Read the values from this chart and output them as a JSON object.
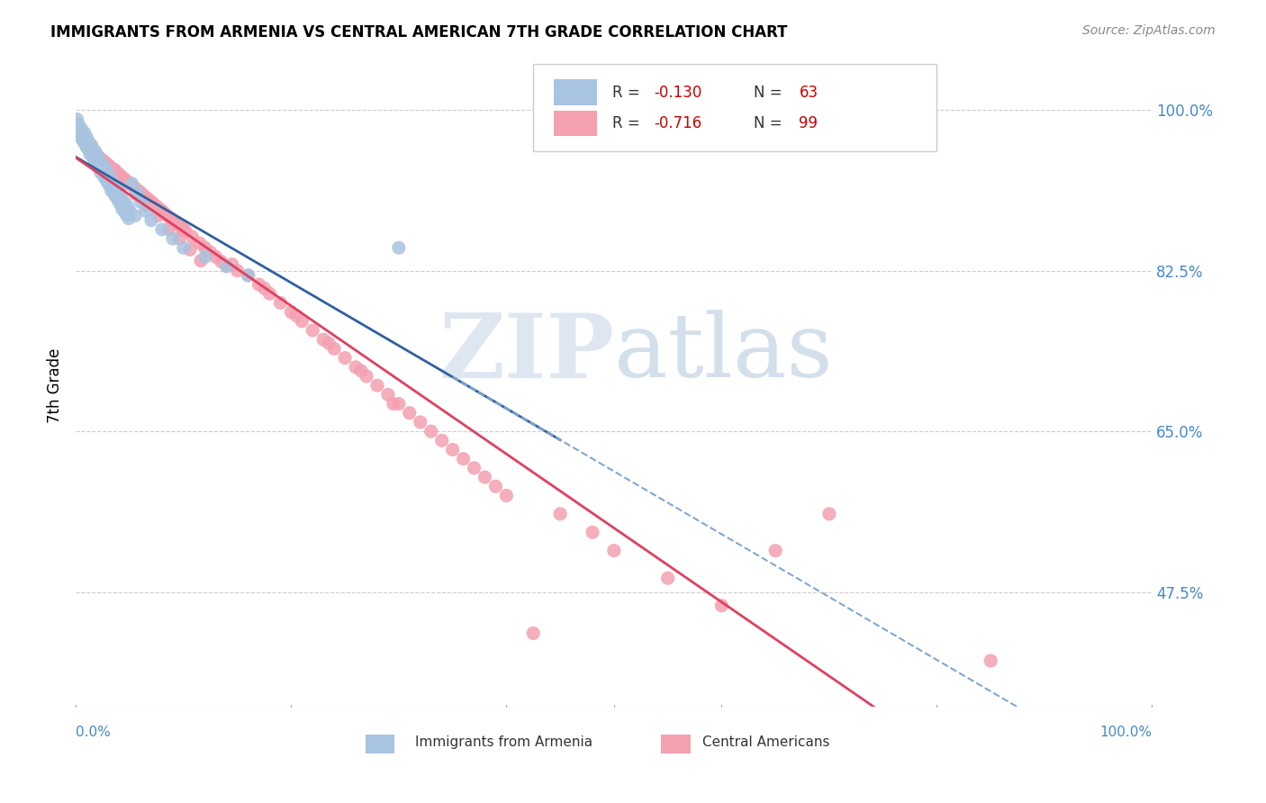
{
  "title": "IMMIGRANTS FROM ARMENIA VS CENTRAL AMERICAN 7TH GRADE CORRELATION CHART",
  "source": "Source: ZipAtlas.com",
  "ylabel": "7th Grade",
  "ytick_labels": [
    "100.0%",
    "82.5%",
    "65.0%",
    "47.5%"
  ],
  "ytick_values": [
    1.0,
    0.825,
    0.65,
    0.475
  ],
  "legend_blue_r": "R = -0.130",
  "legend_blue_n": "N = 63",
  "legend_pink_r": "R = -0.716",
  "legend_pink_n": "N = 99",
  "blue_color": "#a8c4e0",
  "pink_color": "#f4a0b0",
  "blue_line_color": "#3060a0",
  "pink_line_color": "#e04060",
  "blue_dashed_color": "#80a8d0",
  "watermark_zip_color": "#c8d8e8",
  "watermark_atlas_color": "#a8c0d8",
  "background_color": "#ffffff",
  "grid_color": "#cccccc",
  "blue_scatter_x": [
    0.005,
    0.008,
    0.01,
    0.012,
    0.015,
    0.018,
    0.02,
    0.022,
    0.025,
    0.028,
    0.03,
    0.032,
    0.035,
    0.038,
    0.04,
    0.042,
    0.045,
    0.048,
    0.05,
    0.055,
    0.002,
    0.004,
    0.006,
    0.009,
    0.011,
    0.013,
    0.016,
    0.019,
    0.021,
    0.023,
    0.026,
    0.029,
    0.031,
    0.033,
    0.036,
    0.039,
    0.041,
    0.043,
    0.046,
    0.049,
    0.001,
    0.003,
    0.007,
    0.014,
    0.017,
    0.024,
    0.027,
    0.034,
    0.037,
    0.044,
    0.047,
    0.052,
    0.057,
    0.06,
    0.065,
    0.07,
    0.08,
    0.09,
    0.1,
    0.12,
    0.14,
    0.16,
    0.3
  ],
  "blue_scatter_y": [
    0.98,
    0.975,
    0.97,
    0.965,
    0.96,
    0.955,
    0.95,
    0.945,
    0.94,
    0.935,
    0.93,
    0.925,
    0.92,
    0.915,
    0.91,
    0.905,
    0.9,
    0.895,
    0.89,
    0.885,
    0.985,
    0.972,
    0.968,
    0.962,
    0.958,
    0.952,
    0.948,
    0.942,
    0.938,
    0.932,
    0.928,
    0.922,
    0.918,
    0.912,
    0.908,
    0.902,
    0.898,
    0.892,
    0.888,
    0.882,
    0.99,
    0.978,
    0.966,
    0.956,
    0.946,
    0.936,
    0.926,
    0.916,
    0.906,
    0.896,
    0.886,
    0.92,
    0.91,
    0.9,
    0.89,
    0.88,
    0.87,
    0.86,
    0.85,
    0.84,
    0.83,
    0.82,
    0.85
  ],
  "pink_scatter_x": [
    0.005,
    0.01,
    0.015,
    0.02,
    0.025,
    0.03,
    0.035,
    0.04,
    0.045,
    0.05,
    0.055,
    0.06,
    0.065,
    0.07,
    0.075,
    0.08,
    0.085,
    0.09,
    0.095,
    0.1,
    0.008,
    0.012,
    0.018,
    0.022,
    0.028,
    0.032,
    0.038,
    0.042,
    0.048,
    0.052,
    0.058,
    0.062,
    0.068,
    0.072,
    0.078,
    0.082,
    0.088,
    0.092,
    0.098,
    0.102,
    0.108,
    0.115,
    0.12,
    0.125,
    0.13,
    0.135,
    0.14,
    0.15,
    0.16,
    0.17,
    0.18,
    0.19,
    0.2,
    0.21,
    0.22,
    0.23,
    0.24,
    0.25,
    0.26,
    0.27,
    0.28,
    0.29,
    0.3,
    0.31,
    0.32,
    0.33,
    0.34,
    0.35,
    0.36,
    0.37,
    0.38,
    0.39,
    0.4,
    0.45,
    0.48,
    0.5,
    0.55,
    0.6,
    0.65,
    0.7,
    0.014,
    0.026,
    0.036,
    0.046,
    0.056,
    0.066,
    0.076,
    0.086,
    0.096,
    0.106,
    0.116,
    0.145,
    0.175,
    0.205,
    0.235,
    0.265,
    0.295,
    0.425,
    0.85
  ],
  "pink_scatter_y": [
    0.97,
    0.96,
    0.955,
    0.95,
    0.945,
    0.94,
    0.935,
    0.93,
    0.925,
    0.92,
    0.915,
    0.91,
    0.905,
    0.9,
    0.895,
    0.89,
    0.885,
    0.88,
    0.875,
    0.87,
    0.965,
    0.958,
    0.952,
    0.948,
    0.942,
    0.938,
    0.932,
    0.928,
    0.922,
    0.918,
    0.912,
    0.908,
    0.902,
    0.898,
    0.892,
    0.888,
    0.882,
    0.878,
    0.872,
    0.868,
    0.862,
    0.855,
    0.85,
    0.845,
    0.84,
    0.835,
    0.83,
    0.825,
    0.82,
    0.81,
    0.8,
    0.79,
    0.78,
    0.77,
    0.76,
    0.75,
    0.74,
    0.73,
    0.72,
    0.71,
    0.7,
    0.69,
    0.68,
    0.67,
    0.66,
    0.65,
    0.64,
    0.63,
    0.62,
    0.61,
    0.6,
    0.59,
    0.58,
    0.56,
    0.54,
    0.52,
    0.49,
    0.46,
    0.52,
    0.56,
    0.962,
    0.944,
    0.935,
    0.92,
    0.908,
    0.896,
    0.885,
    0.87,
    0.86,
    0.848,
    0.836,
    0.832,
    0.806,
    0.776,
    0.746,
    0.716,
    0.68,
    0.43,
    0.4
  ]
}
